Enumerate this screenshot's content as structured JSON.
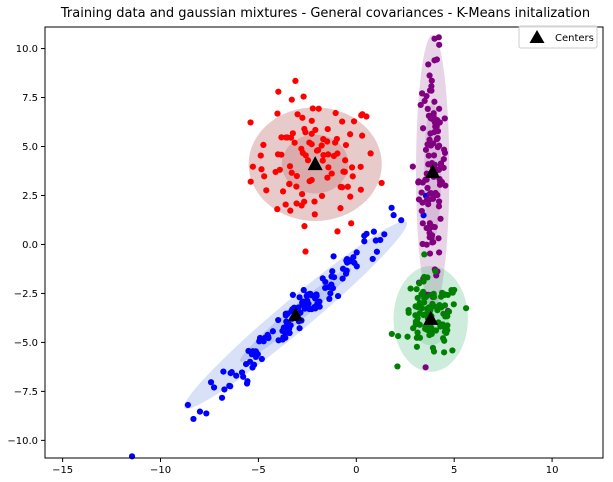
{
  "chart_data": {
    "type": "scatter",
    "title": "Training data and gaussian mixtures - General covariances - K-Means initalization",
    "xlabel": "",
    "ylabel": "",
    "xlim": [
      -15.9,
      12.6
    ],
    "ylim": [
      -10.9,
      11.1
    ],
    "xticks": [
      -15,
      -10,
      -5,
      0,
      5,
      10
    ],
    "yticks": [
      -10.0,
      -7.5,
      -5.0,
      -2.5,
      0.0,
      2.5,
      5.0,
      7.5,
      10.0
    ],
    "xtick_labels": [
      "−15",
      "−10",
      "−5",
      "0",
      "5",
      "10"
    ],
    "ytick_labels": [
      "−10.0",
      "−7.5",
      "−5.0",
      "−2.5",
      "0.0",
      "2.5",
      "5.0",
      "7.5",
      "10.0"
    ],
    "grid": false,
    "legend": {
      "position": "top-right",
      "entries": [
        {
          "label": "Centers",
          "marker": "triangle",
          "color": "#000000"
        }
      ]
    },
    "clusters": [
      {
        "color": "#ff0000",
        "center": [
          -2.1,
          4.1
        ],
        "n_points": 100,
        "spread": {
          "sx": 1.6,
          "sy": 1.7,
          "corr": 0.0
        }
      },
      {
        "color": "#0000ff",
        "center": [
          -3.1,
          -3.6
        ],
        "n_points": 140,
        "spread": {
          "sx": 2.4,
          "sy": 2.3,
          "corr": 0.975
        }
      },
      {
        "color": "#800080",
        "center": [
          3.9,
          3.7
        ],
        "n_points": 120,
        "spread": {
          "sx": 0.35,
          "sy": 2.9,
          "corr": 0.05
        }
      },
      {
        "color": "#008000",
        "center": [
          3.8,
          -3.8
        ],
        "n_points": 100,
        "spread": {
          "sx": 0.75,
          "sy": 1.0,
          "corr": -0.05
        }
      }
    ],
    "centers": [
      {
        "x": -2.1,
        "y": 4.1
      },
      {
        "x": -3.1,
        "y": -3.6
      },
      {
        "x": 3.9,
        "y": 3.7
      },
      {
        "x": 3.8,
        "y": -3.8
      }
    ],
    "ellipses": [
      {
        "color": "#b05050",
        "opacity": 0.3,
        "cx": -2.1,
        "cy": 4.1,
        "rx": 3.4,
        "ry": 2.9,
        "angle_deg": 0
      },
      {
        "color": "#b05050",
        "opacity": 0.25,
        "cx": -2.1,
        "cy": 4.1,
        "rx": 1.7,
        "ry": 1.5,
        "angle_deg": 0
      },
      {
        "color": "#4169e1",
        "opacity": 0.2,
        "cx": -3.1,
        "cy": -3.6,
        "rx": 7.4,
        "ry": 0.8,
        "angle_deg": 40
      },
      {
        "color": "#4169e1",
        "opacity": 0.2,
        "cx": -3.1,
        "cy": -3.6,
        "rx": 3.7,
        "ry": 0.4,
        "angle_deg": 40
      },
      {
        "color": "#b070b0",
        "opacity": 0.3,
        "cx": 3.9,
        "cy": 3.7,
        "rx": 0.85,
        "ry": 7.0,
        "angle_deg": 0
      },
      {
        "color": "#b070b0",
        "opacity": 0.25,
        "cx": 3.9,
        "cy": 3.7,
        "rx": 0.43,
        "ry": 3.5,
        "angle_deg": 0
      },
      {
        "color": "#3cb371",
        "opacity": 0.25,
        "cx": 3.8,
        "cy": -3.8,
        "rx": 1.9,
        "ry": 2.7,
        "angle_deg": 0
      },
      {
        "color": "#3cb371",
        "opacity": 0.2,
        "cx": 3.8,
        "cy": -3.8,
        "rx": 0.95,
        "ry": 1.35,
        "angle_deg": 0
      }
    ]
  }
}
